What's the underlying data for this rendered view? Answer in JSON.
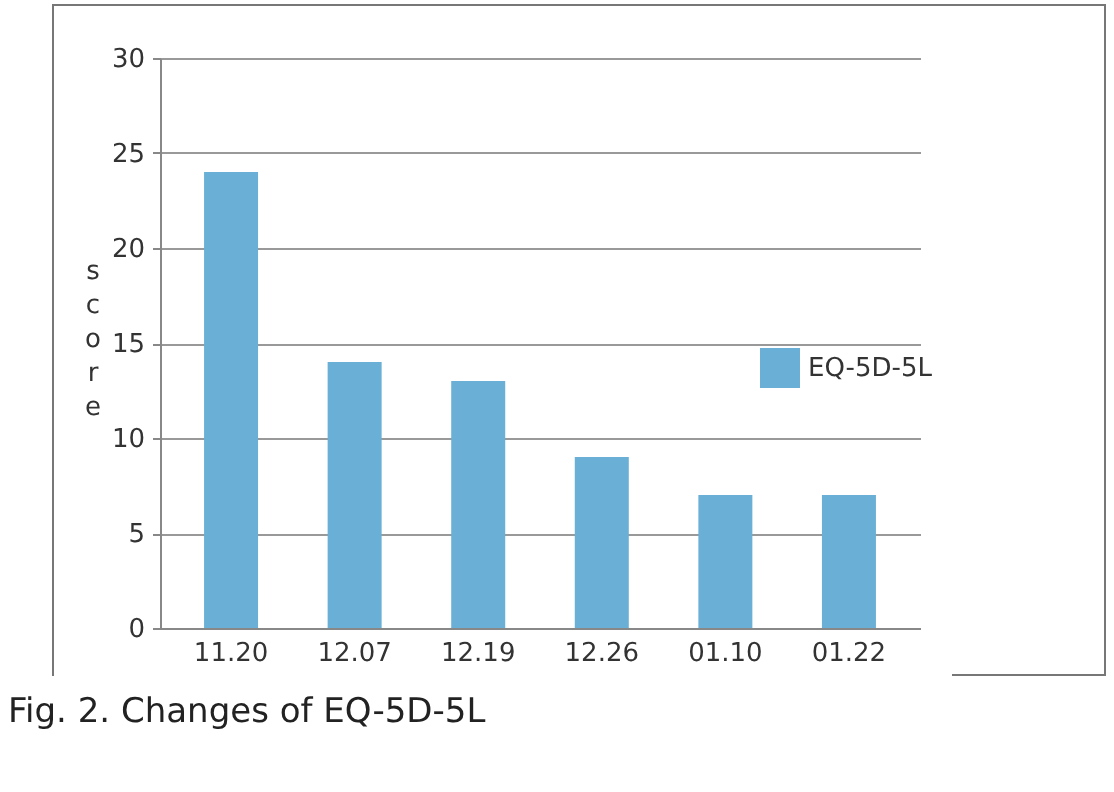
{
  "chart_data": {
    "type": "bar",
    "ylabel": "score",
    "categories": [
      "11.20",
      "12.07",
      "12.19",
      "12.26",
      "01.10",
      "01.22"
    ],
    "series": [
      {
        "name": "EQ-5D-5L",
        "color": "#6aafd6",
        "values": [
          24,
          14,
          13,
          9,
          7,
          7
        ]
      }
    ],
    "ylim": [
      0,
      30
    ],
    "yticks": [
      0,
      5,
      10,
      15,
      20,
      25,
      30
    ],
    "grid": "y",
    "legend": "right",
    "annotations": [
      "Fig. 2. Changes of EQ-5D-5L"
    ]
  }
}
